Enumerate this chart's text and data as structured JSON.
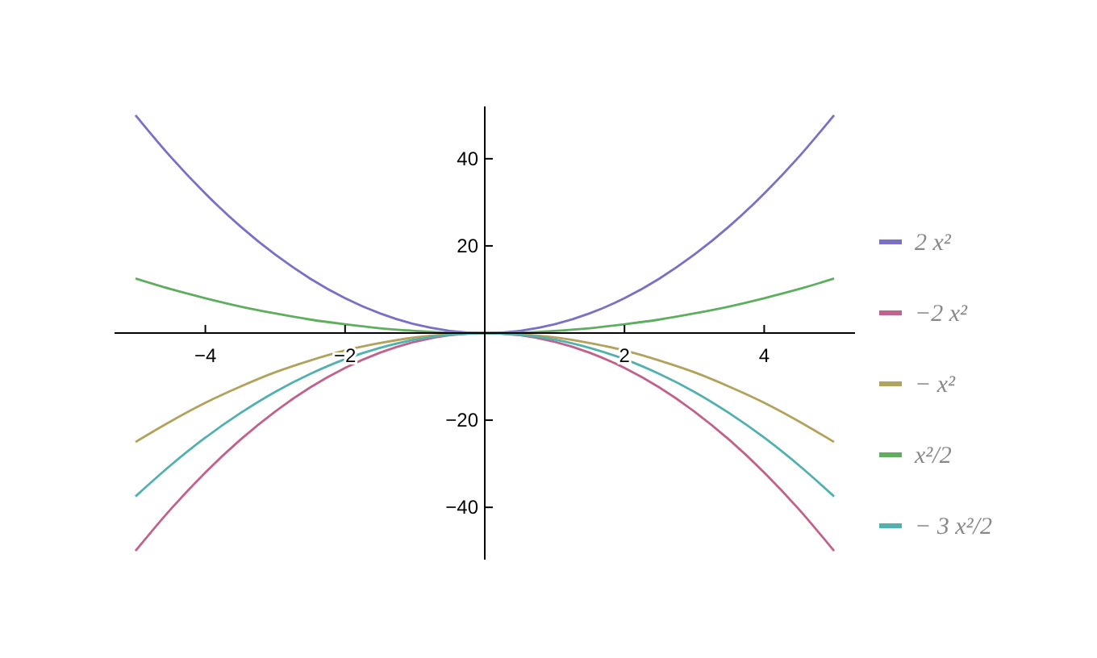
{
  "chart_data": {
    "type": "line",
    "x": [
      -5,
      -4.5,
      -4,
      -3.5,
      -3,
      -2.5,
      -2,
      -1.5,
      -1,
      -0.5,
      0,
      0.5,
      1,
      1.5,
      2,
      2.5,
      3,
      3.5,
      4,
      4.5,
      5
    ],
    "series": [
      {
        "name": "2 x²",
        "color": "#7a70c6",
        "values": [
          50,
          40.5,
          32,
          24.5,
          18,
          12.5,
          8,
          4.5,
          2,
          0.5,
          0,
          0.5,
          2,
          4.5,
          8,
          12.5,
          18,
          24.5,
          32,
          40.5,
          50
        ]
      },
      {
        "name": "−2 x²",
        "color": "#c0628c",
        "values": [
          -50,
          -40.5,
          -32,
          -24.5,
          -18,
          -12.5,
          -8,
          -4.5,
          -2,
          -0.5,
          0,
          -0.5,
          -2,
          -4.5,
          -8,
          -12.5,
          -18,
          -24.5,
          -32,
          -40.5,
          -50
        ]
      },
      {
        "name": "− x²",
        "color": "#b3a25c",
        "values": [
          -25,
          -20.3,
          -16,
          -12.3,
          -9,
          -6.3,
          -4,
          -2.3,
          -1,
          -0.3,
          0,
          -0.3,
          -1,
          -2.3,
          -4,
          -6.3,
          -9,
          -12.3,
          -16,
          -20.3,
          -25
        ]
      },
      {
        "name": "x²/2",
        "color": "#5fae5f",
        "values": [
          12.5,
          10.1,
          8,
          6.1,
          4.5,
          3.1,
          2,
          1.1,
          0.5,
          0.1,
          0,
          0.1,
          0.5,
          1.1,
          2,
          3.1,
          4.5,
          6.1,
          8,
          10.1,
          12.5
        ]
      },
      {
        "name": "− 3 x²/2",
        "color": "#52b0b0",
        "values": [
          -37.5,
          -30.4,
          -24,
          -18.4,
          -13.5,
          -9.4,
          -6,
          -3.4,
          -1.5,
          -0.4,
          0,
          -0.4,
          -1.5,
          -3.4,
          -6,
          -9.4,
          -13.5,
          -18.4,
          -24,
          -30.4,
          -37.5
        ]
      }
    ],
    "xlim": [
      -5.3,
      5.3
    ],
    "ylim": [
      -52,
      52
    ],
    "xticks": [
      {
        "value": -4,
        "label": "−4"
      },
      {
        "value": -2,
        "label": "−2"
      },
      2,
      4
    ],
    "yticks": [
      {
        "value": -40,
        "label": "−40"
      },
      {
        "value": -20,
        "label": "−20"
      },
      20,
      40
    ],
    "grid": false,
    "legend": "right",
    "line_style": "solid",
    "marker": "none"
  }
}
